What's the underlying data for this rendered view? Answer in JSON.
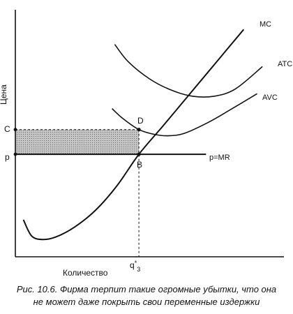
{
  "chart_data": {
    "type": "line",
    "title": "",
    "xlabel": "Количество",
    "ylabel": "Цена",
    "xlim": [
      0,
      10
    ],
    "ylim": [
      0,
      10
    ],
    "grid": false,
    "legend": "none",
    "x_ticks": [
      {
        "x": 4.6,
        "label": "q*3"
      }
    ],
    "y_ticks": [
      {
        "y": 5.15,
        "label": "C"
      },
      {
        "y": 4.15,
        "label": "p"
      }
    ],
    "points": [
      {
        "label": "D",
        "x": 4.6,
        "y": 5.15
      },
      {
        "label": "B",
        "x": 4.6,
        "y": 4.15
      }
    ],
    "series": [
      {
        "name": "MC",
        "x": [
          0.3,
          0.6,
          1.0,
          1.5,
          2.2,
          3.0,
          3.8,
          4.6,
          5.5,
          6.5,
          7.5,
          8.5
        ],
        "y": [
          1.5,
          0.85,
          0.7,
          0.8,
          1.2,
          1.9,
          2.9,
          4.15,
          5.3,
          6.6,
          7.9,
          9.2
        ]
      },
      {
        "name": "ATC",
        "x": [
          3.7,
          4.2,
          5.0,
          5.8,
          6.6,
          7.4,
          8.2,
          9.2
        ],
        "y": [
          8.6,
          7.9,
          7.2,
          6.75,
          6.5,
          6.5,
          6.8,
          7.7
        ]
      },
      {
        "name": "AVC",
        "x": [
          3.6,
          4.0,
          4.6,
          5.2,
          5.7,
          6.3,
          7.2,
          8.0,
          9.0
        ],
        "y": [
          6.0,
          5.6,
          5.15,
          4.95,
          4.9,
          5.0,
          5.45,
          5.95,
          6.6
        ]
      },
      {
        "name": "p=MR",
        "x": [
          0.0,
          7.1
        ],
        "y": [
          4.15,
          4.15
        ]
      }
    ],
    "shaded_region": {
      "x": [
        0.0,
        4.6
      ],
      "y": [
        4.15,
        5.15
      ]
    }
  },
  "labels": {
    "mc": "MC",
    "atc": "ATC",
    "avc": "AVC",
    "pmr": "p=MR",
    "c": "C",
    "p": "p",
    "d": "D",
    "b": "B",
    "q_base": "q",
    "q_sup": "*",
    "q_sub": "3",
    "y_axis": "Цена",
    "x_axis": "Количество"
  },
  "caption": {
    "line1": "Рис. 10.6. Фирма терпит такие огромные убытки, что она",
    "line2": "не может даже покрыть свои переменные издержки"
  },
  "colors": {
    "ink": "#111111",
    "shade": "#b9b9b9"
  }
}
